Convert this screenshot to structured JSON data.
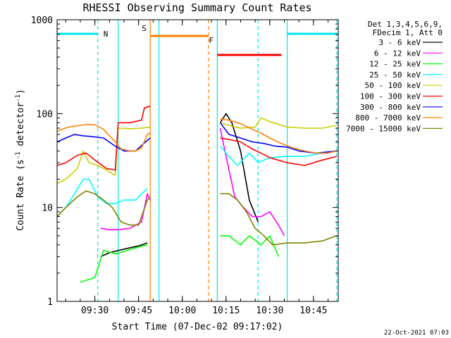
{
  "chart_data": {
    "type": "line",
    "title": "RHESSI Observing Summary Count Rates",
    "xlabel": "Start Time (07-Dec-02 09:17:02)",
    "ylabel_parts": [
      "Count Rate (s",
      "-1",
      " detector",
      "-1",
      ")"
    ],
    "y_scale": "log",
    "ylim": [
      1,
      1000
    ],
    "xlim": [
      "09:17:02",
      "10:53:30"
    ],
    "x_ticks": [
      "09:30",
      "09:45",
      "10:00",
      "10:15",
      "10:30",
      "10:45"
    ],
    "y_ticks": [
      "1",
      "10",
      "100",
      "1000"
    ],
    "legend_header": [
      "Det 1,3,4,5,6,9,",
      "FDecim 1, Att 0"
    ],
    "legend_placement": "right",
    "timestamp": "22-Oct-2021 07:03",
    "flags": [
      {
        "label": "N",
        "color": "#00e6e6",
        "segments": [
          [
            "09:17",
            "09:31"
          ],
          [
            "10:36",
            "10:53"
          ]
        ]
      },
      {
        "label": "S",
        "color": "#ff8000",
        "segments": [
          [
            "09:49",
            "10:09"
          ]
        ]
      },
      {
        "label": "F",
        "color": "#ff0000",
        "segments": [
          [
            "10:12",
            "10:34"
          ]
        ]
      }
    ],
    "markers": [
      {
        "time": "09:31",
        "color": "#00e6e6",
        "style": "dashed"
      },
      {
        "time": "09:38",
        "color": "#00e6e6",
        "style": "solid"
      },
      {
        "time": "09:49",
        "color": "#ff8000",
        "style": "solid"
      },
      {
        "time": "09:52",
        "color": "#00e6e6",
        "style": "solid"
      },
      {
        "time": "10:09",
        "color": "#ff8000",
        "style": "dashed"
      },
      {
        "time": "10:12",
        "color": "#00e6e6",
        "style": "solid"
      },
      {
        "time": "10:26",
        "color": "#00e6e6",
        "style": "dashed"
      },
      {
        "time": "10:36",
        "color": "#00e6e6",
        "style": "solid"
      },
      {
        "time": "10:53",
        "color": "#00e6e6",
        "style": "dashed"
      }
    ],
    "series": [
      {
        "name": "3 - 6 keV",
        "color": "#000000",
        "segments": [
          [
            [
              "09:32",
              3
            ],
            [
              "09:35",
              3.3
            ],
            [
              "09:40",
              3.6
            ],
            [
              "09:45",
              3.9
            ],
            [
              "09:48",
              4.2
            ]
          ],
          [
            [
              "10:13",
              80
            ],
            [
              "10:15",
              100
            ],
            [
              "10:17",
              80
            ],
            [
              "10:20",
              40
            ],
            [
              "10:23",
              12
            ],
            [
              "10:26",
              7
            ]
          ]
        ]
      },
      {
        "name": "6 - 12 keV",
        "color": "#ff00ff",
        "segments": [
          [
            [
              "09:32",
              6
            ],
            [
              "09:35",
              5.8
            ],
            [
              "09:38",
              5.8
            ],
            [
              "09:42",
              6
            ],
            [
              "09:46",
              7
            ],
            [
              "09:48",
              14
            ],
            [
              "09:49",
              12
            ]
          ],
          [
            [
              "10:13",
              70
            ],
            [
              "10:15",
              35
            ],
            [
              "10:18",
              13
            ],
            [
              "10:21",
              10
            ],
            [
              "10:24",
              8
            ],
            [
              "10:27",
              8
            ],
            [
              "10:30",
              9
            ],
            [
              "10:33",
              6.5
            ],
            [
              "10:35",
              5
            ]
          ]
        ]
      },
      {
        "name": "12 - 25 keV",
        "color": "#00ff00",
        "segments": [
          [
            [
              "09:25",
              1.6
            ],
            [
              "09:30",
              1.8
            ],
            [
              "09:33",
              3.5
            ],
            [
              "09:37",
              3.2
            ],
            [
              "09:40",
              3.4
            ],
            [
              "09:45",
              3.8
            ],
            [
              "09:48",
              4
            ]
          ],
          [
            [
              "10:13",
              5
            ],
            [
              "10:16",
              5
            ],
            [
              "10:20",
              4
            ],
            [
              "10:23",
              5
            ],
            [
              "10:27",
              4
            ],
            [
              "10:30",
              5
            ],
            [
              "10:33",
              3
            ]
          ]
        ]
      },
      {
        "name": "25 - 50 keV",
        "color": "#00ffff",
        "segments": [
          [
            [
              "09:17",
              8
            ],
            [
              "09:20",
              10
            ],
            [
              "09:23",
              14
            ],
            [
              "09:26",
              20
            ],
            [
              "09:28",
              20
            ],
            [
              "09:31",
              13
            ],
            [
              "09:34",
              11
            ],
            [
              "09:37",
              11
            ],
            [
              "09:40",
              12
            ],
            [
              "09:44",
              12
            ],
            [
              "09:46",
              14
            ],
            [
              "09:48",
              16
            ]
          ],
          [
            [
              "10:13",
              45
            ],
            [
              "10:16",
              35
            ],
            [
              "10:19",
              28
            ],
            [
              "10:23",
              38
            ],
            [
              "10:26",
              30
            ],
            [
              "10:30",
              34
            ],
            [
              "10:36",
              35
            ],
            [
              "10:42",
              35
            ],
            [
              "10:48",
              38
            ],
            [
              "10:53",
              40
            ]
          ]
        ]
      },
      {
        "name": "50 - 100 keV",
        "color": "#cccc00",
        "segments": [
          [
            [
              "09:17",
              18
            ],
            [
              "09:20",
              20
            ],
            [
              "09:24",
              26
            ],
            [
              "09:26",
              40
            ],
            [
              "09:28",
              30
            ],
            [
              "09:31",
              28
            ],
            [
              "09:34",
              25
            ],
            [
              "09:37",
              22
            ],
            [
              "09:38",
              70
            ],
            [
              "09:42",
              69
            ],
            [
              "09:46",
              70
            ],
            [
              "09:49",
              72
            ]
          ],
          [
            [
              "10:13",
              80
            ],
            [
              "10:16",
              75
            ],
            [
              "10:20",
              70
            ],
            [
              "10:25",
              72
            ],
            [
              "10:27",
              90
            ],
            [
              "10:30",
              82
            ],
            [
              "10:36",
              72
            ],
            [
              "10:42",
              70
            ],
            [
              "10:48",
              70
            ],
            [
              "10:53",
              75
            ]
          ]
        ]
      },
      {
        "name": "100 - 300 keV",
        "color": "#ff0000",
        "segments": [
          [
            [
              "09:17",
              28
            ],
            [
              "09:20",
              30
            ],
            [
              "09:24",
              36
            ],
            [
              "09:27",
              38
            ],
            [
              "09:30",
              32
            ],
            [
              "09:34",
              26
            ],
            [
              "09:37",
              25
            ],
            [
              "09:38",
              80
            ],
            [
              "09:42",
              80
            ],
            [
              "09:46",
              85
            ],
            [
              "09:47",
              115
            ],
            [
              "09:49",
              120
            ]
          ],
          [
            [
              "10:13",
              55
            ],
            [
              "10:16",
              53
            ],
            [
              "10:20",
              50
            ],
            [
              "10:24",
              42
            ],
            [
              "10:27",
              38
            ],
            [
              "10:30",
              34
            ],
            [
              "10:36",
              30
            ],
            [
              "10:42",
              28
            ],
            [
              "10:48",
              32
            ],
            [
              "10:53",
              35
            ]
          ]
        ]
      },
      {
        "name": "300 - 800 keV",
        "color": "#0000ff",
        "segments": [
          [
            [
              "09:17",
              50
            ],
            [
              "09:20",
              55
            ],
            [
              "09:23",
              60
            ],
            [
              "09:26",
              58
            ],
            [
              "09:29",
              57
            ],
            [
              "09:33",
              55
            ],
            [
              "09:37",
              45
            ],
            [
              "09:40",
              40
            ],
            [
              "09:44",
              40
            ],
            [
              "09:48",
              52
            ],
            [
              "09:49",
              55
            ]
          ],
          [
            [
              "10:13",
              80
            ],
            [
              "10:16",
              60
            ],
            [
              "10:20",
              55
            ],
            [
              "10:24",
              50
            ],
            [
              "10:28",
              48
            ],
            [
              "10:32",
              45
            ],
            [
              "10:36",
              44
            ],
            [
              "10:40",
              40
            ],
            [
              "10:46",
              38
            ],
            [
              "10:53",
              40
            ]
          ]
        ]
      },
      {
        "name": "800 - 7000 keV",
        "color": "#ff8000",
        "segments": [
          [
            [
              "09:17",
              65
            ],
            [
              "09:21",
              72
            ],
            [
              "09:25",
              75
            ],
            [
              "09:28",
              77
            ],
            [
              "09:30",
              76
            ],
            [
              "09:33",
              68
            ],
            [
              "09:37",
              50
            ],
            [
              "09:39",
              42
            ],
            [
              "09:42",
              40
            ],
            [
              "09:44",
              40
            ],
            [
              "09:46",
              43
            ],
            [
              "09:48",
              60
            ],
            [
              "09:49",
              62
            ]
          ],
          [
            [
              "10:13",
              88
            ],
            [
              "10:16",
              85
            ],
            [
              "10:20",
              78
            ],
            [
              "10:24",
              68
            ],
            [
              "10:27",
              62
            ],
            [
              "10:30",
              55
            ],
            [
              "10:34",
              48
            ],
            [
              "10:38",
              43
            ],
            [
              "10:42",
              40
            ],
            [
              "10:46",
              38
            ],
            [
              "10:50",
              38
            ],
            [
              "10:53",
              40
            ]
          ]
        ]
      },
      {
        "name": "7000 - 15000 keV",
        "color": "#808000",
        "segments": [
          [
            [
              "09:17",
              8
            ],
            [
              "09:20",
              10
            ],
            [
              "09:24",
              13
            ],
            [
              "09:27",
              15
            ],
            [
              "09:30",
              14
            ],
            [
              "09:33",
              12
            ],
            [
              "09:36",
              10
            ],
            [
              "09:39",
              7
            ],
            [
              "09:42",
              6.5
            ],
            [
              "09:45",
              6.5
            ],
            [
              "09:48",
              12
            ],
            [
              "09:49",
              13
            ]
          ],
          [
            [
              "10:13",
              14
            ],
            [
              "10:16",
              14
            ],
            [
              "10:19",
              12
            ],
            [
              "10:22",
              9
            ],
            [
              "10:25",
              6
            ],
            [
              "10:28",
              5
            ],
            [
              "10:31",
              4
            ],
            [
              "10:36",
              4.2
            ],
            [
              "10:42",
              4.2
            ],
            [
              "10:48",
              4.4
            ],
            [
              "10:53",
              5
            ]
          ]
        ]
      }
    ]
  }
}
